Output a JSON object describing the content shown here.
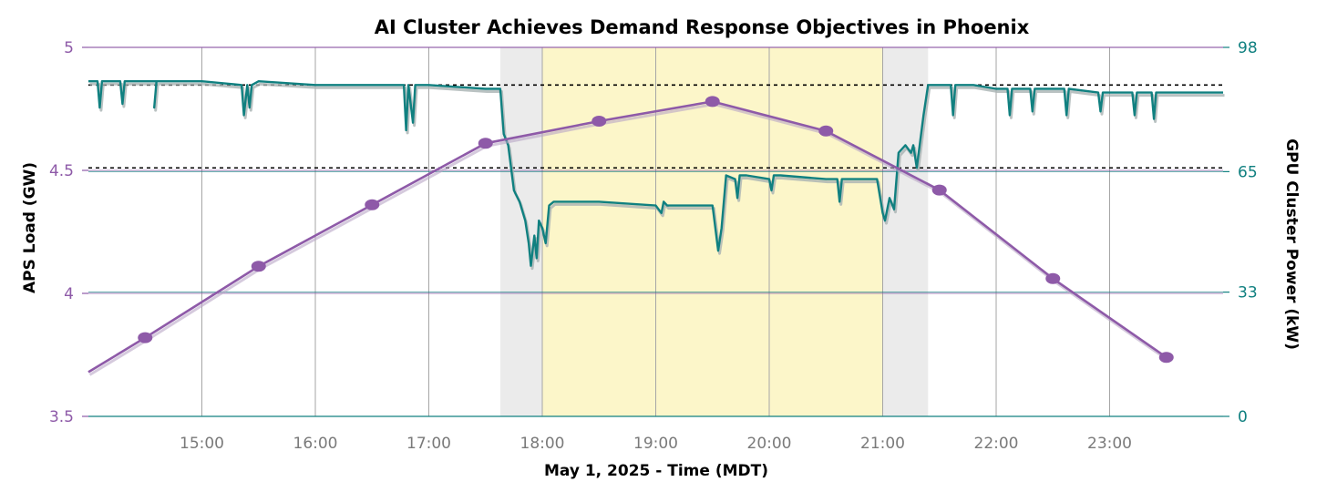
{
  "colors": {
    "title": "#0b4a12",
    "aps": "#8e5aa8",
    "gpu": "#108080",
    "gpu_shadow": "#a9b3b3",
    "x_label": "#7a7a7a",
    "shade_gray": "#ebebeb",
    "shade_yellow": "#fcf6c9",
    "grid_v": "#a6a6a6",
    "ref_line": "#000000"
  },
  "chart_data": {
    "type": "line",
    "title": "AI Cluster Achieves Demand Response Objectives in Phoenix",
    "xlabel": "May 1, 2025 - Time (MDT)",
    "ylabel_left": "APS Load  (GW)",
    "ylabel_right": "GPU Cluster Power (kW)",
    "xlim": [
      14.0,
      24.0
    ],
    "ylim_left": [
      3.5,
      5.0
    ],
    "ylim_right": [
      0,
      98
    ],
    "x_ticks": [
      15,
      16,
      17,
      18,
      19,
      20,
      21,
      22,
      23
    ],
    "x_tick_labels": [
      "15:00",
      "16:00",
      "17:00",
      "18:00",
      "19:00",
      "20:00",
      "21:00",
      "22:00",
      "23:00"
    ],
    "y_left_ticks": [
      3.5,
      4.0,
      4.5,
      5.0
    ],
    "y_left_tick_labels": [
      "3.5",
      "4",
      "4.5",
      "5"
    ],
    "y_right_ticks": [
      0,
      33,
      65,
      98
    ],
    "y_right_tick_labels": [
      "0",
      "33",
      "65",
      "98"
    ],
    "grid": true,
    "shaded_regions": [
      {
        "x0": 17.63,
        "x1": 18.0,
        "kind": "gray"
      },
      {
        "x0": 18.0,
        "x1": 21.0,
        "kind": "yellow"
      },
      {
        "x0": 21.0,
        "x1": 21.4,
        "kind": "gray"
      }
    ],
    "reference_lines_right": [
      88,
      66
    ],
    "series": [
      {
        "name": "APS Load",
        "axis": "left",
        "x": [
          14.0,
          14.5,
          15.5,
          16.5,
          17.5,
          18.5,
          19.5,
          20.5,
          21.5,
          22.5,
          23.5
        ],
        "y": [
          3.68,
          3.82,
          4.11,
          4.36,
          4.61,
          4.7,
          4.78,
          4.66,
          4.42,
          4.06,
          3.74
        ],
        "markers": [
          false,
          true,
          true,
          true,
          true,
          true,
          true,
          true,
          true,
          true,
          true
        ]
      },
      {
        "name": "GPU Cluster Power",
        "axis": "right",
        "x": [
          14.0,
          14.08,
          14.1,
          14.12,
          14.2,
          14.28,
          14.3,
          14.32,
          14.6,
          14.58,
          14.6,
          14.62,
          15.0,
          15.35,
          15.37,
          15.4,
          15.42,
          15.44,
          15.5,
          16.0,
          16.5,
          16.78,
          16.8,
          16.82,
          16.86,
          16.88,
          16.9,
          17.0,
          17.5,
          17.63,
          17.66,
          17.7,
          17.75,
          17.8,
          17.85,
          17.88,
          17.9,
          17.93,
          17.95,
          17.97,
          18.0,
          18.03,
          18.06,
          18.1,
          18.2,
          18.5,
          19.0,
          19.05,
          19.07,
          19.1,
          19.5,
          19.55,
          19.58,
          19.62,
          19.7,
          19.72,
          19.74,
          19.8,
          20.0,
          20.02,
          20.04,
          20.1,
          20.5,
          20.6,
          20.62,
          20.64,
          20.8,
          20.95,
          21.0,
          21.02,
          21.06,
          21.1,
          21.14,
          21.2,
          21.25,
          21.27,
          21.3,
          21.36,
          21.4,
          21.6,
          21.62,
          21.64,
          21.8,
          22.0,
          22.1,
          22.12,
          22.14,
          22.3,
          22.32,
          22.34,
          22.6,
          22.62,
          22.64,
          22.9,
          22.92,
          22.94,
          23.2,
          23.22,
          23.24,
          23.37,
          23.39,
          23.41,
          23.7,
          24.0
        ],
        "y": [
          89,
          89,
          82,
          89,
          89,
          89,
          83,
          89,
          89,
          82,
          89,
          89,
          89,
          88,
          80,
          88,
          82,
          88,
          89,
          88,
          88,
          88,
          76,
          88,
          78,
          88,
          88,
          88,
          87,
          87,
          75,
          72,
          60,
          57,
          52,
          46,
          40,
          48,
          42,
          52,
          50,
          46,
          56,
          57,
          57,
          57,
          56,
          54,
          57,
          56,
          56,
          44,
          50,
          64,
          63,
          58,
          64,
          64,
          63,
          60,
          64,
          64,
          63,
          63,
          57,
          63,
          63,
          63,
          54,
          52,
          58,
          55,
          70,
          72,
          70,
          72,
          66,
          80,
          88,
          88,
          80,
          88,
          88,
          87,
          87,
          80,
          87,
          87,
          81,
          87,
          87,
          80,
          87,
          86,
          81,
          86,
          86,
          80,
          86,
          86,
          79,
          86,
          86,
          86
        ]
      }
    ]
  }
}
